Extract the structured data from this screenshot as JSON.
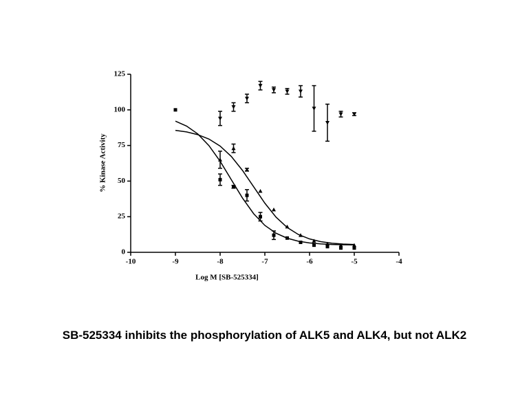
{
  "chart_data": {
    "type": "scatter",
    "xlabel": "Log M [SB-525334]",
    "ylabel": "% Kinase Activity",
    "xlim": [
      -10,
      -4
    ],
    "ylim": [
      0,
      125
    ],
    "xticks": [
      -10,
      -9,
      -8,
      -7,
      -6,
      -5,
      -4
    ],
    "yticks": [
      0,
      25,
      50,
      75,
      100,
      125
    ],
    "series": [
      {
        "marker": "triangle-down",
        "color": "#000000",
        "x": [
          -8,
          -7.7,
          -7.4,
          -7.1,
          -6.8,
          -6.5,
          -6.2,
          -5.9,
          -5.6,
          -5.3,
          -5.0
        ],
        "values": [
          94,
          102,
          108,
          117,
          114,
          113,
          113,
          101,
          91,
          97,
          97
        ],
        "errors": [
          5,
          3,
          3,
          3,
          2,
          2,
          4,
          16,
          13,
          2,
          1
        ]
      },
      {
        "marker": "square",
        "color": "#000000",
        "x": [
          -9,
          -8,
          -7.7,
          -7.4,
          -7.1,
          -6.8,
          -6.5,
          -6.2,
          -5.9,
          -5.6,
          -5.3,
          -5.0
        ],
        "values": [
          100,
          51,
          46,
          40,
          25,
          12,
          10,
          7,
          5,
          4,
          3,
          3
        ],
        "errors": [
          null,
          4,
          1,
          4,
          3,
          3,
          null,
          null,
          null,
          null,
          null,
          null
        ]
      },
      {
        "marker": "triangle-up",
        "color": "#000000",
        "x": [
          -8,
          -7.7,
          -7.4,
          -7.1,
          -6.8,
          -6.5,
          -6.2,
          -5.9,
          -5.6,
          -5.3,
          -5.0
        ],
        "values": [
          65,
          73,
          58,
          43,
          30,
          18,
          12,
          8,
          6,
          5,
          5
        ],
        "errors": [
          6,
          3,
          1,
          null,
          null,
          null,
          null,
          null,
          null,
          null,
          null
        ]
      }
    ],
    "fits": [
      {
        "color": "#000000",
        "x": [
          -9,
          -8.75,
          -8.5,
          -8.25,
          -8,
          -7.75,
          -7.5,
          -7.25,
          -7,
          -6.75,
          -6.5,
          -6.25,
          -6,
          -5.75,
          -5.5,
          -5.25,
          -5
        ],
        "values": [
          92.1,
          88.6,
          83.1,
          74.9,
          63.9,
          51,
          38.1,
          27.1,
          18.9,
          13.4,
          9.9,
          7.8,
          6.6,
          5.9,
          5.5,
          5.3,
          5.2
        ]
      },
      {
        "color": "#000000",
        "x": [
          -9,
          -8.75,
          -8.5,
          -8.25,
          -8,
          -7.75,
          -7.5,
          -7.25,
          -7,
          -6.75,
          -6.5,
          -6.25,
          -6,
          -5.75,
          -5.5,
          -5.25,
          -5
        ],
        "values": [
          85.6,
          84.5,
          82.6,
          79.5,
          74.6,
          67.3,
          57.5,
          46,
          34.5,
          24.7,
          17.4,
          12.5,
          9.4,
          7.5,
          6.4,
          5.8,
          5.5
        ]
      }
    ]
  },
  "caption": "SB-525334 inhibits the phosphorylation of ALK5 and ALK4, but not ALK2"
}
